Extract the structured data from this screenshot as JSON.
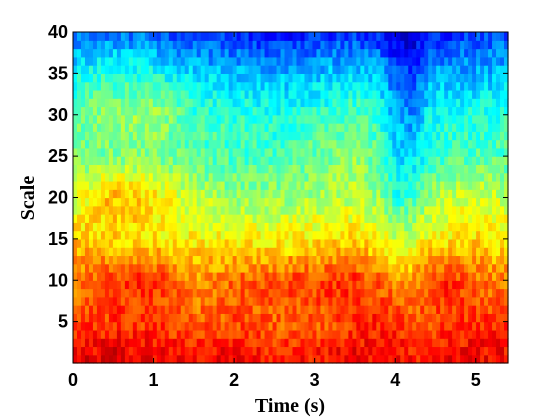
{
  "chart_data": {
    "type": "heatmap",
    "title": "",
    "xlabel": "Time (s)",
    "ylabel": "Scale",
    "xlim": [
      0,
      5.4
    ],
    "ylim": [
      0,
      40
    ],
    "x_ticks": [
      0,
      1,
      2,
      3,
      4,
      5
    ],
    "y_ticks": [
      5,
      10,
      15,
      20,
      25,
      30,
      35,
      40
    ],
    "x_tick_labels": [
      "0",
      "1",
      "2",
      "3",
      "4",
      "5"
    ],
    "y_tick_labels": [
      "5",
      "10",
      "15",
      "20",
      "25",
      "30",
      "35",
      "40"
    ],
    "colormap": "jet",
    "grid": false,
    "legend": "none",
    "x_nodes": [
      0,
      0.5,
      1.0,
      1.5,
      2.0,
      2.5,
      3.0,
      3.5,
      3.8,
      4.0,
      4.2,
      4.4,
      4.6,
      5.0,
      5.4
    ],
    "y_nodes": [
      1,
      5,
      10,
      15,
      20,
      25,
      30,
      35,
      40
    ],
    "value_range": [
      0,
      1
    ],
    "values": [
      [
        0.88,
        0.9,
        0.88,
        0.86,
        0.88,
        0.85,
        0.86,
        0.88,
        0.87,
        0.86,
        0.86,
        0.85,
        0.87,
        0.88,
        0.87
      ],
      [
        0.8,
        0.82,
        0.82,
        0.78,
        0.8,
        0.78,
        0.78,
        0.82,
        0.84,
        0.82,
        0.8,
        0.8,
        0.82,
        0.83,
        0.82
      ],
      [
        0.75,
        0.82,
        0.84,
        0.72,
        0.78,
        0.8,
        0.82,
        0.84,
        0.78,
        0.74,
        0.72,
        0.8,
        0.84,
        0.78,
        0.74
      ],
      [
        0.68,
        0.66,
        0.64,
        0.64,
        0.64,
        0.62,
        0.64,
        0.66,
        0.62,
        0.58,
        0.58,
        0.62,
        0.64,
        0.66,
        0.64
      ],
      [
        0.58,
        0.7,
        0.66,
        0.56,
        0.52,
        0.52,
        0.54,
        0.56,
        0.52,
        0.42,
        0.44,
        0.52,
        0.56,
        0.58,
        0.56
      ],
      [
        0.48,
        0.5,
        0.5,
        0.46,
        0.44,
        0.44,
        0.48,
        0.52,
        0.46,
        0.35,
        0.32,
        0.42,
        0.44,
        0.46,
        0.46
      ],
      [
        0.48,
        0.52,
        0.54,
        0.44,
        0.42,
        0.4,
        0.42,
        0.46,
        0.42,
        0.3,
        0.26,
        0.36,
        0.4,
        0.4,
        0.42
      ],
      [
        0.38,
        0.42,
        0.4,
        0.34,
        0.32,
        0.3,
        0.32,
        0.34,
        0.32,
        0.2,
        0.18,
        0.28,
        0.3,
        0.3,
        0.32
      ],
      [
        0.22,
        0.24,
        0.22,
        0.18,
        0.16,
        0.14,
        0.16,
        0.18,
        0.14,
        0.08,
        0.06,
        0.14,
        0.16,
        0.18,
        0.2
      ]
    ]
  }
}
